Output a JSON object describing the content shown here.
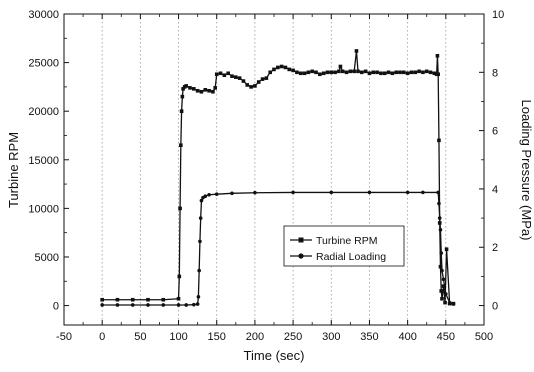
{
  "chart_data": {
    "type": "line",
    "xlabel": "Time (sec)",
    "ylabel_left": "Turbine RPM",
    "ylabel_right": "Loading Pressure (MPa)",
    "xlim": [
      -50,
      500
    ],
    "ylim_left": [
      -2000,
      30000
    ],
    "ylim_right": [
      -0.6667,
      10
    ],
    "x_ticks": [
      -50,
      0,
      50,
      100,
      150,
      200,
      250,
      300,
      350,
      400,
      450,
      500
    ],
    "y_left_ticks": [
      0,
      5000,
      10000,
      15000,
      20000,
      25000,
      30000
    ],
    "y_right_ticks": [
      0,
      2,
      4,
      6,
      8,
      10
    ],
    "grid": {
      "vertical": true,
      "horizontal": false
    },
    "legend": {
      "placement": "lower-right-center"
    },
    "series": [
      {
        "name": "Turbine RPM",
        "axis": "left",
        "marker": "square",
        "color": "#111111",
        "x": [
          0,
          20,
          40,
          60,
          80,
          100,
          101,
          102,
          103,
          104,
          105,
          106,
          108,
          110,
          115,
          120,
          125,
          130,
          135,
          140,
          145,
          148,
          150,
          155,
          160,
          165,
          170,
          175,
          180,
          185,
          190,
          195,
          200,
          205,
          210,
          215,
          220,
          225,
          230,
          235,
          240,
          245,
          250,
          255,
          260,
          265,
          270,
          275,
          280,
          285,
          290,
          295,
          300,
          305,
          310,
          312,
          315,
          320,
          325,
          330,
          333,
          335,
          340,
          345,
          350,
          355,
          360,
          365,
          370,
          375,
          380,
          385,
          390,
          395,
          400,
          405,
          410,
          415,
          420,
          425,
          430,
          435,
          438,
          439,
          440,
          441,
          442,
          443,
          444,
          445,
          447,
          449,
          451,
          455,
          460
        ],
        "y": [
          600,
          600,
          600,
          600,
          600,
          700,
          3000,
          10000,
          16500,
          20000,
          21500,
          22300,
          22500,
          22600,
          22400,
          22300,
          22100,
          22000,
          22200,
          22100,
          22000,
          22400,
          23800,
          23900,
          23700,
          23900,
          23600,
          23500,
          23400,
          23100,
          22700,
          22500,
          22600,
          23000,
          23300,
          23400,
          24000,
          24300,
          24500,
          24600,
          24500,
          24300,
          24200,
          24000,
          23900,
          23900,
          24000,
          24100,
          24000,
          23800,
          23900,
          24000,
          24000,
          24000,
          24100,
          24600,
          24100,
          24000,
          24100,
          24100,
          26200,
          24100,
          24000,
          24100,
          23900,
          24000,
          24000,
          23900,
          23900,
          24000,
          23900,
          24000,
          24000,
          24000,
          23900,
          24000,
          24000,
          24100,
          24000,
          24100,
          24000,
          23900,
          23800,
          25700,
          23800,
          17000,
          8500,
          4000,
          1500,
          700,
          2000,
          300,
          5800,
          200,
          200
        ]
      },
      {
        "name": "Radial Loading",
        "axis": "right",
        "marker": "circle",
        "color": "#111111",
        "x": [
          0,
          20,
          40,
          60,
          80,
          100,
          110,
          120,
          125,
          126,
          127,
          128,
          129,
          130,
          132,
          135,
          140,
          150,
          170,
          200,
          250,
          300,
          350,
          400,
          420,
          440,
          441,
          442,
          443,
          444,
          445,
          447,
          450,
          455,
          460
        ],
        "y": [
          0.02,
          0.02,
          0.02,
          0.02,
          0.02,
          0.02,
          0.02,
          0.03,
          0.05,
          0.3,
          1.2,
          2.2,
          3.0,
          3.6,
          3.7,
          3.75,
          3.8,
          3.82,
          3.85,
          3.87,
          3.88,
          3.88,
          3.88,
          3.88,
          3.88,
          3.88,
          3.5,
          3.0,
          2.6,
          1.8,
          1.2,
          0.9,
          0.4,
          0.1,
          0.05
        ]
      }
    ]
  }
}
